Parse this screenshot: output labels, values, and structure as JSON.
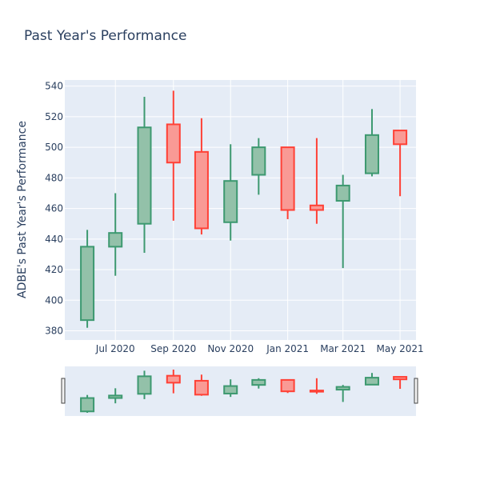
{
  "chart_data": {
    "type": "candlestick",
    "title": "Past Year's Performance",
    "ylabel": "ADBE's Past Year's Performance",
    "xlabel": "",
    "y_ticks": [
      380,
      400,
      420,
      440,
      460,
      480,
      500,
      520,
      540
    ],
    "ylim": [
      374,
      544
    ],
    "x_ticks": [
      {
        "date": "2020-07-01",
        "label": "Jul 2020"
      },
      {
        "date": "2020-09-01",
        "label": "Sep 2020"
      },
      {
        "date": "2020-11-01",
        "label": "Nov 2020"
      },
      {
        "date": "2021-01-01",
        "label": "Jan 2021"
      },
      {
        "date": "2021-03-01",
        "label": "Mar 2021"
      },
      {
        "date": "2021-05-01",
        "label": "May 2021"
      }
    ],
    "xlim": [
      "2020-05-08",
      "2021-05-18"
    ],
    "grid": true,
    "range_slider": true,
    "increasing_color": "#3d9970",
    "increasing_fill": "#93c1a9",
    "decreasing_color": "#ff4136",
    "decreasing_fill": "#f99a95",
    "plot_bg": "#e5ecf6",
    "candles": [
      {
        "date": "2020-06-01",
        "open": 387,
        "high": 446,
        "low": 382,
        "close": 435
      },
      {
        "date": "2020-07-01",
        "open": 435,
        "high": 470,
        "low": 416,
        "close": 444
      },
      {
        "date": "2020-08-01",
        "open": 450,
        "high": 533,
        "low": 431,
        "close": 513
      },
      {
        "date": "2020-09-01",
        "open": 515,
        "high": 537,
        "low": 452,
        "close": 490
      },
      {
        "date": "2020-10-01",
        "open": 497,
        "high": 519,
        "low": 443,
        "close": 447
      },
      {
        "date": "2020-11-01",
        "open": 451,
        "high": 502,
        "low": 439,
        "close": 478
      },
      {
        "date": "2020-12-01",
        "open": 482,
        "high": 506,
        "low": 469,
        "close": 500
      },
      {
        "date": "2021-01-01",
        "open": 500,
        "high": 500,
        "low": 453,
        "close": 459
      },
      {
        "date": "2021-02-01",
        "open": 462,
        "high": 506,
        "low": 450,
        "close": 459
      },
      {
        "date": "2021-03-01",
        "open": 465,
        "high": 482,
        "low": 421,
        "close": 475
      },
      {
        "date": "2021-04-01",
        "open": 483,
        "high": 525,
        "low": 481,
        "close": 508
      },
      {
        "date": "2021-05-01",
        "open": 511,
        "high": 511,
        "low": 468,
        "close": 502
      }
    ]
  }
}
